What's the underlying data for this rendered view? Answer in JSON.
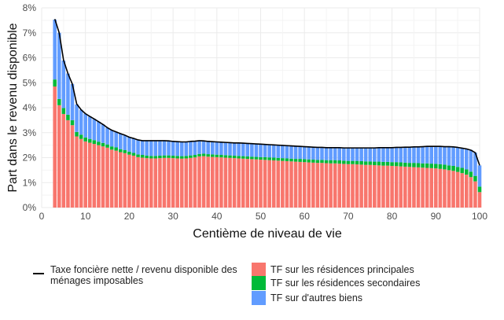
{
  "chart_data": {
    "type": "bar",
    "subtype": "stacked-bar-with-line",
    "xlabel": "Centième de niveau de vie",
    "ylabel": "Part dans le revenu disponible",
    "xlim": [
      0,
      100
    ],
    "ylim": [
      0,
      8
    ],
    "x_ticks": [
      "0",
      "10",
      "20",
      "30",
      "40",
      "50",
      "60",
      "70",
      "80",
      "90",
      "100"
    ],
    "y_ticks": [
      "0%",
      "1%",
      "2%",
      "3%",
      "4%",
      "5%",
      "6%",
      "7%",
      "8%"
    ],
    "grid": true,
    "legend_position": "bottom",
    "x": [
      3,
      4,
      5,
      6,
      7,
      8,
      9,
      10,
      11,
      12,
      13,
      14,
      15,
      16,
      17,
      18,
      19,
      20,
      21,
      22,
      23,
      24,
      25,
      26,
      27,
      28,
      29,
      30,
      31,
      32,
      33,
      34,
      35,
      36,
      37,
      38,
      39,
      40,
      41,
      42,
      43,
      44,
      45,
      46,
      47,
      48,
      49,
      50,
      51,
      52,
      53,
      54,
      55,
      56,
      57,
      58,
      59,
      60,
      61,
      62,
      63,
      64,
      65,
      66,
      67,
      68,
      69,
      70,
      71,
      72,
      73,
      74,
      75,
      76,
      77,
      78,
      79,
      80,
      81,
      82,
      83,
      84,
      85,
      86,
      87,
      88,
      89,
      90,
      91,
      92,
      93,
      94,
      95,
      96,
      97,
      98,
      99,
      100
    ],
    "series": [
      {
        "name": "TF sur les résidences principales",
        "color": "#f8766d",
        "values": [
          4.85,
          4.1,
          3.75,
          3.5,
          3.3,
          2.85,
          2.75,
          2.65,
          2.6,
          2.55,
          2.5,
          2.45,
          2.4,
          2.32,
          2.28,
          2.22,
          2.18,
          2.12,
          2.08,
          2.02,
          2.0,
          1.98,
          1.97,
          1.97,
          1.98,
          1.99,
          1.99,
          1.98,
          1.97,
          1.96,
          1.97,
          1.99,
          2.01,
          2.05,
          2.06,
          2.04,
          2.03,
          2.02,
          2.01,
          2.0,
          1.99,
          1.98,
          1.97,
          1.96,
          1.95,
          1.94,
          1.93,
          1.92,
          1.91,
          1.9,
          1.89,
          1.88,
          1.87,
          1.86,
          1.85,
          1.84,
          1.83,
          1.82,
          1.81,
          1.8,
          1.79,
          1.79,
          1.78,
          1.77,
          1.77,
          1.76,
          1.75,
          1.74,
          1.74,
          1.73,
          1.72,
          1.71,
          1.71,
          1.7,
          1.69,
          1.68,
          1.68,
          1.67,
          1.66,
          1.65,
          1.64,
          1.63,
          1.62,
          1.61,
          1.6,
          1.59,
          1.58,
          1.57,
          1.55,
          1.53,
          1.5,
          1.47,
          1.43,
          1.38,
          1.32,
          1.22,
          1.05,
          0.62
        ]
      },
      {
        "name": "TF sur les résidences secondaires",
        "color": "#00ba38",
        "values": [
          0.28,
          0.25,
          0.24,
          0.22,
          0.2,
          0.18,
          0.17,
          0.16,
          0.15,
          0.15,
          0.14,
          0.14,
          0.13,
          0.13,
          0.13,
          0.12,
          0.12,
          0.12,
          0.11,
          0.11,
          0.11,
          0.1,
          0.1,
          0.1,
          0.1,
          0.1,
          0.1,
          0.1,
          0.1,
          0.1,
          0.1,
          0.1,
          0.1,
          0.1,
          0.1,
          0.1,
          0.1,
          0.1,
          0.1,
          0.1,
          0.1,
          0.1,
          0.1,
          0.1,
          0.1,
          0.1,
          0.1,
          0.1,
          0.11,
          0.11,
          0.11,
          0.11,
          0.11,
          0.11,
          0.11,
          0.11,
          0.12,
          0.12,
          0.12,
          0.12,
          0.12,
          0.12,
          0.12,
          0.13,
          0.13,
          0.13,
          0.13,
          0.13,
          0.13,
          0.14,
          0.14,
          0.14,
          0.14,
          0.14,
          0.15,
          0.15,
          0.15,
          0.15,
          0.16,
          0.16,
          0.16,
          0.16,
          0.17,
          0.17,
          0.17,
          0.18,
          0.18,
          0.18,
          0.19,
          0.19,
          0.19,
          0.2,
          0.2,
          0.21,
          0.21,
          0.22,
          0.22,
          0.22
        ]
      },
      {
        "name": "TF sur d'autres biens",
        "color": "#619cff",
        "values": [
          2.4,
          2.65,
          1.9,
          1.65,
          1.45,
          1.1,
          1.0,
          0.95,
          0.9,
          0.85,
          0.8,
          0.74,
          0.67,
          0.65,
          0.62,
          0.62,
          0.6,
          0.58,
          0.58,
          0.58,
          0.57,
          0.6,
          0.61,
          0.61,
          0.6,
          0.59,
          0.58,
          0.57,
          0.57,
          0.57,
          0.56,
          0.56,
          0.55,
          0.53,
          0.51,
          0.51,
          0.51,
          0.51,
          0.51,
          0.51,
          0.51,
          0.51,
          0.52,
          0.52,
          0.52,
          0.52,
          0.52,
          0.52,
          0.51,
          0.51,
          0.51,
          0.51,
          0.51,
          0.51,
          0.51,
          0.51,
          0.5,
          0.5,
          0.5,
          0.5,
          0.5,
          0.5,
          0.5,
          0.5,
          0.5,
          0.51,
          0.51,
          0.52,
          0.52,
          0.52,
          0.53,
          0.54,
          0.54,
          0.55,
          0.56,
          0.57,
          0.57,
          0.58,
          0.59,
          0.6,
          0.62,
          0.63,
          0.64,
          0.65,
          0.67,
          0.68,
          0.69,
          0.7,
          0.71,
          0.72,
          0.75,
          0.76,
          0.78,
          0.79,
          0.82,
          0.87,
          0.93,
          0.85
        ]
      }
    ],
    "line": {
      "name": "Taxe foncière nette / revenu disponible des ménages imposables",
      "color": "#000000",
      "values": [
        7.55,
        7.0,
        5.9,
        5.37,
        4.95,
        4.15,
        3.92,
        3.76,
        3.65,
        3.55,
        3.44,
        3.33,
        3.2,
        3.1,
        3.03,
        2.96,
        2.9,
        2.82,
        2.77,
        2.71,
        2.68,
        2.68,
        2.68,
        2.68,
        2.68,
        2.68,
        2.67,
        2.65,
        2.64,
        2.63,
        2.63,
        2.65,
        2.66,
        2.68,
        2.67,
        2.65,
        2.64,
        2.63,
        2.62,
        2.61,
        2.6,
        2.59,
        2.59,
        2.58,
        2.57,
        2.56,
        2.55,
        2.54,
        2.53,
        2.52,
        2.51,
        2.5,
        2.49,
        2.48,
        2.47,
        2.46,
        2.45,
        2.44,
        2.43,
        2.42,
        2.41,
        2.41,
        2.4,
        2.4,
        2.4,
        2.4,
        2.39,
        2.39,
        2.39,
        2.39,
        2.39,
        2.39,
        2.39,
        2.39,
        2.4,
        2.4,
        2.4,
        2.4,
        2.41,
        2.41,
        2.42,
        2.42,
        2.43,
        2.43,
        2.44,
        2.45,
        2.45,
        2.45,
        2.45,
        2.44,
        2.44,
        2.43,
        2.41,
        2.38,
        2.35,
        2.3,
        2.2,
        1.69
      ]
    }
  }
}
